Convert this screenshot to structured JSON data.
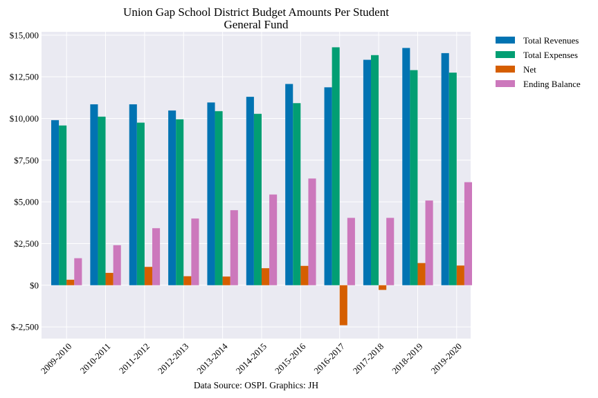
{
  "chart_data": {
    "type": "bar",
    "title": "Union Gap School District Budget Amounts Per Student",
    "subtitle": "General Fund",
    "caption": "Data Source: OSPI. Graphics: JH",
    "categories": [
      "2009-2010",
      "2010-2011",
      "2011-2012",
      "2012-2013",
      "2013-2014",
      "2014-2015",
      "2015-2016",
      "2016-2017",
      "2017-2018",
      "2018-2019",
      "2019-2020"
    ],
    "series": [
      {
        "name": "Total Revenues",
        "color": "#0173b2",
        "values": [
          9900,
          10850,
          10850,
          10480,
          10960,
          11300,
          12070,
          11870,
          13520,
          14230,
          13920
        ]
      },
      {
        "name": "Total Expenses",
        "color": "#029e73",
        "values": [
          9580,
          10110,
          9750,
          9950,
          10440,
          10280,
          10920,
          14270,
          13800,
          12900,
          12750
        ]
      },
      {
        "name": "Net",
        "color": "#d55e00",
        "values": [
          330,
          740,
          1100,
          540,
          520,
          1020,
          1160,
          -2400,
          -280,
          1330,
          1180
        ]
      },
      {
        "name": "Ending Balance",
        "color": "#cc78bc",
        "values": [
          1620,
          2400,
          3420,
          4000,
          4500,
          5440,
          6400,
          4040,
          4040,
          5080,
          6180
        ]
      }
    ],
    "ylim": [
      -3200,
      15200
    ],
    "yticks": [
      -2500,
      0,
      2500,
      5000,
      7500,
      10000,
      12500,
      15000
    ],
    "ytick_labels": [
      "$-2,500",
      "$0",
      "$2,500",
      "$5,000",
      "$7,500",
      "$10,000",
      "$12,500",
      "$15,000"
    ],
    "grid": true,
    "legend_position": "outside-right"
  },
  "style": {
    "plot_background": "#eaeaf2",
    "grid_color": "#ffffff"
  }
}
